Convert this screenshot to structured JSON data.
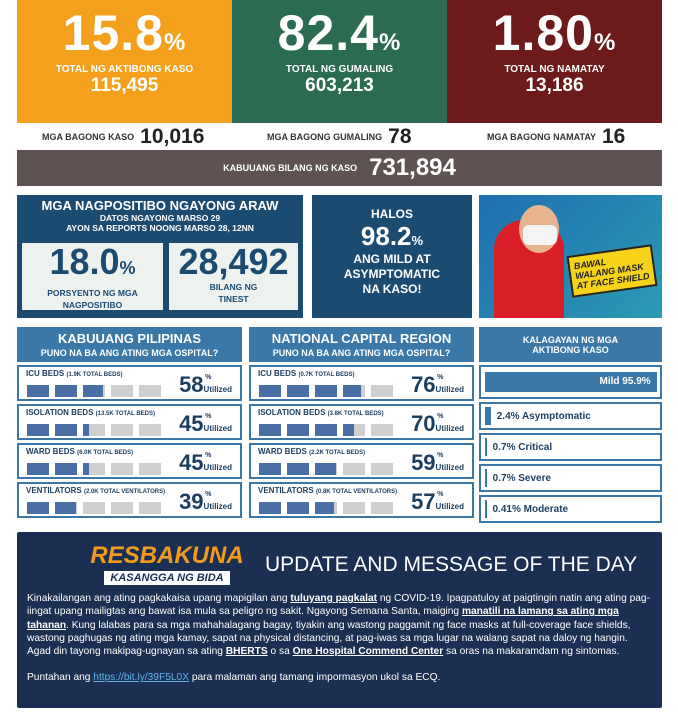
{
  "summary": {
    "active": {
      "pct": "15.8",
      "label": "TOTAL NG AKTIBONG KASO",
      "count": "115,495",
      "color": "#f5a01c"
    },
    "recovered": {
      "pct": "82.4",
      "label": "TOTAL NG GUMALING",
      "count": "603,213",
      "color": "#2a6b52"
    },
    "deaths": {
      "pct": "1.80",
      "label": "TOTAL NG NAMATAY",
      "count": "13,186",
      "color": "#6d1a1a"
    },
    "pct_sign": "%"
  },
  "new": {
    "cases_label": "MGA BAGONG KASO",
    "cases": "10,016",
    "recovered_label": "MGA BAGONG GUMALING",
    "recovered": "78",
    "deaths_label": "MGA BAGONG NAMATAY",
    "deaths": "16"
  },
  "total": {
    "label": "KABUUANG BILANG NG KASO",
    "value": "731,894"
  },
  "positivity": {
    "title": "MGA NAGPOSITIBO NGAYONG ARAW",
    "date": "DATOS NGAYONG MARSO 29",
    "source": "AYON SA REPORTS NOONG MARSO 28, 12NN",
    "rate": "18.0",
    "rate_label": "PORSYENTO NG MGA NAGPOSITIBO",
    "tested": "28,492",
    "tested_label": "BILANG NG TINEST"
  },
  "mild": {
    "pre": "HALOS",
    "pct": "98.2",
    "text": "ANG MILD AT ASYMPTOMATIC NA KASO!"
  },
  "banner": {
    "text": "BAWAL WALANG MASK AT FACE SHIELD"
  },
  "utilized_label": "Utilized",
  "hospitals": [
    {
      "title": "KABUUANG PILIPINAS",
      "subtitle": "PUNO NA BA ANG ATING MGA OSPITAL?",
      "rows": [
        {
          "name": "ICU BEDS",
          "total": "(1.9K TOTAL BEDS)",
          "pct": 58
        },
        {
          "name": "ISOLATION BEDS",
          "total": "(13.5K TOTAL BEDS)",
          "pct": 45
        },
        {
          "name": "WARD BEDS",
          "total": "(6.0K TOTAL BEDS)",
          "pct": 45
        },
        {
          "name": "VENTILATORS",
          "total": "(2.0K TOTAL VENTILATORS)",
          "pct": 39
        }
      ]
    },
    {
      "title": "NATIONAL CAPITAL REGION",
      "subtitle": "PUNO NA BA ANG ATING MGA OSPITAL?",
      "rows": [
        {
          "name": "ICU BEDS",
          "total": "(0.7K TOTAL BEDS)",
          "pct": 76
        },
        {
          "name": "ISOLATION BEDS",
          "total": "(3.8K TOTAL BEDS)",
          "pct": 70
        },
        {
          "name": "WARD BEDS",
          "total": "(2.2K TOTAL BEDS)",
          "pct": 59
        },
        {
          "name": "VENTILATORS",
          "total": "(0.8K TOTAL VENTILATORS)",
          "pct": 57
        }
      ]
    }
  ],
  "status": {
    "title": "KALAGAYAN NG MGA AKTIBONG KASO",
    "items": [
      {
        "label": "Mild 95.9%",
        "pct": 95.9
      },
      {
        "label": "2.4% Asymptomatic",
        "pct": 2.4
      },
      {
        "label": "0.7% Critical",
        "pct": 0.7
      },
      {
        "label": "0.7% Severe",
        "pct": 0.7
      },
      {
        "label": "0.41% Moderate",
        "pct": 0.41
      }
    ]
  },
  "message": {
    "logo_top": "RESBAKUNA",
    "logo_bottom": "KASANGGA NG BIDA",
    "title": "UPDATE AND MESSAGE OF THE DAY",
    "p1a": "Kinakailangan ang ating pagkakaisa upang mapigilan ang ",
    "p1b": "tuluyang pagkalat",
    "p1c": " ng COVID-19. Ipagpatuloy at paigtingin natin ang ating pag-iingat upang mailigtas ang bawat isa mula sa peligro ng sakit. Ngayong Semana Santa, maiging ",
    "p1d": "manatili na lamang sa ating mga tahanan",
    "p1e": ". Kung lalabas para sa mga mahahalagang bagay, tiyakin ang wastong paggamit ng face masks at full-coverage face shields, wastong paghugas ng ating mga kamay, sapat na physical distancing, at pag-iwas sa mga lugar na walang sapat na daloy ng hangin. Agad din tayong makipag-ugnayan sa ating ",
    "p1f": "BHERTS",
    "p1g": " o sa ",
    "p1h": "One Hospital Commend Center",
    "p1i": " sa oras na makaramdam ng sintomas.",
    "p2a": "Puntahan ang ",
    "link": "https://bit.ly/39F5L0X",
    "p2b": " para malaman ang tamang impormasyon ukol sa ECQ."
  }
}
